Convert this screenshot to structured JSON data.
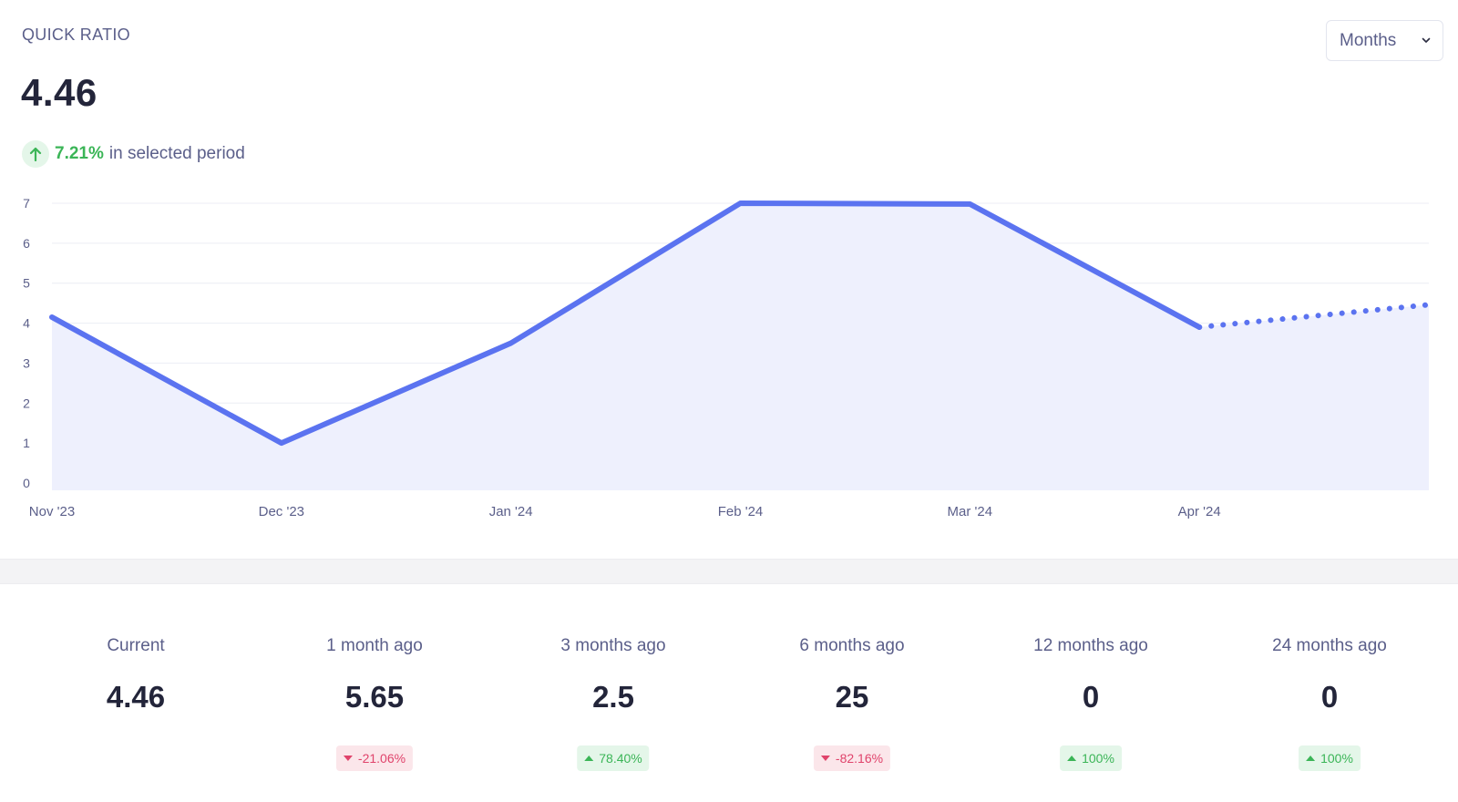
{
  "metric": {
    "title": "QUICK RATIO",
    "value": "4.46",
    "change_pct": "7.21%",
    "change_text": "in selected period",
    "change_icon": "arrow-up-icon"
  },
  "period_select": {
    "selected": "Months",
    "icon": "chevron-down-icon"
  },
  "colors": {
    "line": "#5b73f0",
    "area": "#eef0fd",
    "positive": "#3bb557",
    "negative": "#e0436b"
  },
  "chart_data": {
    "type": "area",
    "title": "",
    "xlabel": "",
    "ylabel": "",
    "categories": [
      "Nov '23",
      "Dec '23",
      "Jan '24",
      "Feb '24",
      "Mar '24",
      "Apr '24",
      ""
    ],
    "y_ticks": [
      "0",
      "1",
      "2",
      "3",
      "4",
      "5",
      "6",
      "7"
    ],
    "ylim": [
      0,
      7
    ],
    "grid": true,
    "series": [
      {
        "values": [
          4.15,
          1.0,
          3.5,
          7.0,
          6.98,
          3.9,
          4.46
        ],
        "projected_from_index": 5
      }
    ]
  },
  "stats": [
    {
      "label": "Current",
      "value": "4.46",
      "badge": "",
      "trend": ""
    },
    {
      "label": "1 month ago",
      "value": "5.65",
      "badge": "-21.06%",
      "trend": "down"
    },
    {
      "label": "3 months ago",
      "value": "2.5",
      "badge": "78.40%",
      "trend": "up"
    },
    {
      "label": "6 months ago",
      "value": "25",
      "badge": "-82.16%",
      "trend": "down"
    },
    {
      "label": "12 months ago",
      "value": "0",
      "badge": "100%",
      "trend": "up"
    },
    {
      "label": "24 months ago",
      "value": "0",
      "badge": "100%",
      "trend": "up"
    }
  ]
}
